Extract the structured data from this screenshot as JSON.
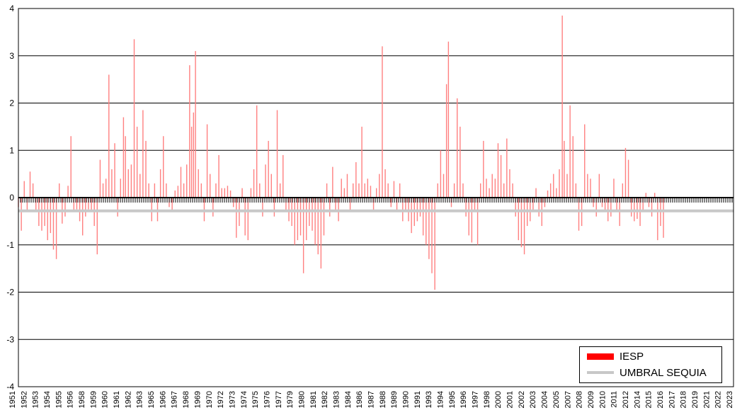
{
  "chart_data": {
    "type": "bar",
    "title": "",
    "xlabel": "",
    "ylabel": "",
    "ylim": [
      -4,
      4
    ],
    "yticks": [
      "4",
      "3",
      "2",
      "1",
      "0",
      "-1",
      "-2",
      "-3",
      "-4"
    ],
    "xlim": [
      1951,
      2024.5
    ],
    "xticks": [
      "1951",
      "1952",
      "1953",
      "1954",
      "1955",
      "1956",
      "1958",
      "1959",
      "1960",
      "1961",
      "1962",
      "1963",
      "1965",
      "1966",
      "1967",
      "1968",
      "1969",
      "1970",
      "1972",
      "1973",
      "1974",
      "1975",
      "1976",
      "1977",
      "1979",
      "1980",
      "1981",
      "1982",
      "1983",
      "1984",
      "1986",
      "1987",
      "1988",
      "1989",
      "1990",
      "1991",
      "1993",
      "1994",
      "1995",
      "1996",
      "1997",
      "1998",
      "2000",
      "2001",
      "2002",
      "2003",
      "2004",
      "2005",
      "2007",
      "2008",
      "2009",
      "2010",
      "2011",
      "2012",
      "2014",
      "2015",
      "2016",
      "2017",
      "2018",
      "2019",
      "2021",
      "2022",
      "2023"
    ],
    "grid": true,
    "legend_position": "bottom-right",
    "colors": {
      "bars": "#ff8080",
      "threshold": "#c8c8c8",
      "legend_iesp": "#ff0000"
    },
    "series": [
      {
        "name": "IESP",
        "kind": "bar",
        "points": [
          [
            1951.0,
            -0.2
          ],
          [
            1951.3,
            -0.7
          ],
          [
            1951.6,
            0.35
          ],
          [
            1951.9,
            -0.3
          ],
          [
            1952.2,
            0.55
          ],
          [
            1952.5,
            0.3
          ],
          [
            1952.8,
            -0.3
          ],
          [
            1953.1,
            -0.6
          ],
          [
            1953.4,
            -0.7
          ],
          [
            1953.7,
            -0.6
          ],
          [
            1954.0,
            -0.9
          ],
          [
            1954.3,
            -0.75
          ],
          [
            1954.6,
            -1.1
          ],
          [
            1954.9,
            -1.3
          ],
          [
            1955.2,
            0.3
          ],
          [
            1955.5,
            -0.55
          ],
          [
            1955.8,
            -0.4
          ],
          [
            1956.1,
            0.25
          ],
          [
            1956.4,
            1.3
          ],
          [
            1956.7,
            -0.3
          ],
          [
            1957.0,
            -0.25
          ],
          [
            1957.3,
            -0.5
          ],
          [
            1957.6,
            -0.8
          ],
          [
            1957.9,
            -0.4
          ],
          [
            1958.2,
            -0.25
          ],
          [
            1958.5,
            -0.3
          ],
          [
            1958.8,
            -0.6
          ],
          [
            1959.1,
            -1.2
          ],
          [
            1959.4,
            0.8
          ],
          [
            1959.7,
            0.3
          ],
          [
            1960.0,
            0.4
          ],
          [
            1960.3,
            2.6
          ],
          [
            1960.6,
            0.6
          ],
          [
            1960.9,
            1.15
          ],
          [
            1961.2,
            -0.4
          ],
          [
            1961.5,
            0.4
          ],
          [
            1961.8,
            1.7
          ],
          [
            1962.0,
            1.3
          ],
          [
            1962.3,
            0.6
          ],
          [
            1962.6,
            0.7
          ],
          [
            1962.9,
            3.35
          ],
          [
            1963.2,
            1.5
          ],
          [
            1963.5,
            0.5
          ],
          [
            1963.8,
            1.85
          ],
          [
            1964.1,
            1.2
          ],
          [
            1964.4,
            0.3
          ],
          [
            1964.7,
            -0.5
          ],
          [
            1965.0,
            0.3
          ],
          [
            1965.3,
            -0.5
          ],
          [
            1965.6,
            0.6
          ],
          [
            1965.9,
            1.3
          ],
          [
            1966.2,
            0.3
          ],
          [
            1966.5,
            -0.2
          ],
          [
            1966.8,
            -0.3
          ],
          [
            1967.1,
            0.15
          ],
          [
            1967.4,
            0.25
          ],
          [
            1967.7,
            0.65
          ],
          [
            1968.0,
            0.3
          ],
          [
            1968.3,
            0.7
          ],
          [
            1968.6,
            2.8
          ],
          [
            1968.8,
            1.5
          ],
          [
            1969.0,
            1.8
          ],
          [
            1969.2,
            3.1
          ],
          [
            1969.5,
            0.6
          ],
          [
            1969.8,
            0.3
          ],
          [
            1970.1,
            -0.5
          ],
          [
            1970.4,
            1.55
          ],
          [
            1970.7,
            0.5
          ],
          [
            1971.0,
            -0.4
          ],
          [
            1971.3,
            0.3
          ],
          [
            1971.6,
            0.9
          ],
          [
            1971.9,
            0.2
          ],
          [
            1972.2,
            0.2
          ],
          [
            1972.5,
            0.25
          ],
          [
            1972.8,
            0.15
          ],
          [
            1973.1,
            -0.2
          ],
          [
            1973.4,
            -0.85
          ],
          [
            1973.7,
            -0.6
          ],
          [
            1974.0,
            0.2
          ],
          [
            1974.3,
            -0.8
          ],
          [
            1974.6,
            -0.9
          ],
          [
            1974.9,
            0.2
          ],
          [
            1975.2,
            0.6
          ],
          [
            1975.5,
            1.95
          ],
          [
            1975.8,
            0.3
          ],
          [
            1976.1,
            -0.4
          ],
          [
            1976.4,
            0.7
          ],
          [
            1976.7,
            1.2
          ],
          [
            1977.0,
            0.5
          ],
          [
            1977.3,
            -0.4
          ],
          [
            1977.6,
            1.85
          ],
          [
            1977.9,
            0.3
          ],
          [
            1978.2,
            0.9
          ],
          [
            1978.5,
            -0.3
          ],
          [
            1978.8,
            -0.5
          ],
          [
            1979.1,
            -0.6
          ],
          [
            1979.4,
            -1.0
          ],
          [
            1979.7,
            -0.9
          ],
          [
            1980.0,
            -0.8
          ],
          [
            1980.3,
            -1.6
          ],
          [
            1980.6,
            -0.9
          ],
          [
            1980.9,
            -0.6
          ],
          [
            1981.2,
            -0.7
          ],
          [
            1981.5,
            -1.0
          ],
          [
            1981.8,
            -1.2
          ],
          [
            1982.1,
            -1.5
          ],
          [
            1982.4,
            -0.8
          ],
          [
            1982.7,
            0.3
          ],
          [
            1983.0,
            -0.4
          ],
          [
            1983.3,
            0.65
          ],
          [
            1983.6,
            -0.3
          ],
          [
            1983.9,
            -0.5
          ],
          [
            1984.2,
            0.4
          ],
          [
            1984.5,
            0.2
          ],
          [
            1984.8,
            0.5
          ],
          [
            1985.1,
            -0.3
          ],
          [
            1985.4,
            0.3
          ],
          [
            1985.7,
            0.75
          ],
          [
            1986.0,
            0.3
          ],
          [
            1986.3,
            1.5
          ],
          [
            1986.6,
            0.3
          ],
          [
            1986.9,
            0.4
          ],
          [
            1987.2,
            0.25
          ],
          [
            1987.5,
            -0.3
          ],
          [
            1987.8,
            0.2
          ],
          [
            1988.1,
            0.5
          ],
          [
            1988.4,
            3.2
          ],
          [
            1988.7,
            0.6
          ],
          [
            1989.0,
            0.3
          ],
          [
            1989.3,
            -0.2
          ],
          [
            1989.6,
            0.35
          ],
          [
            1989.9,
            -0.3
          ],
          [
            1990.2,
            0.3
          ],
          [
            1990.5,
            -0.5
          ],
          [
            1990.8,
            -0.3
          ],
          [
            1991.1,
            -0.5
          ],
          [
            1991.4,
            -0.75
          ],
          [
            1991.7,
            -0.6
          ],
          [
            1992.0,
            -0.5
          ],
          [
            1992.3,
            -0.4
          ],
          [
            1992.6,
            -0.8
          ],
          [
            1992.9,
            -1.0
          ],
          [
            1993.2,
            -1.3
          ],
          [
            1993.5,
            -1.6
          ],
          [
            1993.8,
            -1.95
          ],
          [
            1994.1,
            0.3
          ],
          [
            1994.4,
            1.0
          ],
          [
            1994.7,
            0.5
          ],
          [
            1995.0,
            2.4
          ],
          [
            1995.2,
            3.3
          ],
          [
            1995.5,
            -0.2
          ],
          [
            1995.8,
            0.3
          ],
          [
            1996.1,
            2.1
          ],
          [
            1996.4,
            1.5
          ],
          [
            1996.7,
            0.3
          ],
          [
            1997.0,
            -0.4
          ],
          [
            1997.3,
            -0.8
          ],
          [
            1997.6,
            -0.95
          ],
          [
            1997.9,
            -0.3
          ],
          [
            1998.2,
            -1.0
          ],
          [
            1998.5,
            0.3
          ],
          [
            1998.8,
            1.2
          ],
          [
            1999.1,
            0.4
          ],
          [
            1999.4,
            0.2
          ],
          [
            1999.7,
            0.5
          ],
          [
            2000.0,
            0.4
          ],
          [
            2000.3,
            1.15
          ],
          [
            2000.6,
            0.9
          ],
          [
            2000.9,
            0.3
          ],
          [
            2001.2,
            1.25
          ],
          [
            2001.5,
            0.6
          ],
          [
            2001.8,
            0.3
          ],
          [
            2002.1,
            -0.4
          ],
          [
            2002.4,
            -0.9
          ],
          [
            2002.7,
            -1.05
          ],
          [
            2003.0,
            -1.2
          ],
          [
            2003.3,
            -0.6
          ],
          [
            2003.6,
            -0.5
          ],
          [
            2003.9,
            -0.3
          ],
          [
            2004.2,
            0.2
          ],
          [
            2004.5,
            -0.4
          ],
          [
            2004.8,
            -0.6
          ],
          [
            2005.1,
            -0.2
          ],
          [
            2005.4,
            0.15
          ],
          [
            2005.7,
            0.3
          ],
          [
            2006.0,
            0.5
          ],
          [
            2006.3,
            0.2
          ],
          [
            2006.6,
            0.6
          ],
          [
            2006.9,
            3.85
          ],
          [
            2007.1,
            1.2
          ],
          [
            2007.4,
            0.5
          ],
          [
            2007.7,
            1.95
          ],
          [
            2008.0,
            1.3
          ],
          [
            2008.3,
            0.3
          ],
          [
            2008.6,
            -0.7
          ],
          [
            2008.9,
            -0.6
          ],
          [
            2009.2,
            1.55
          ],
          [
            2009.5,
            0.5
          ],
          [
            2009.8,
            0.4
          ],
          [
            2010.1,
            -0.2
          ],
          [
            2010.4,
            -0.4
          ],
          [
            2010.7,
            0.5
          ],
          [
            2011.0,
            -0.2
          ],
          [
            2011.3,
            -0.3
          ],
          [
            2011.6,
            -0.5
          ],
          [
            2011.9,
            -0.4
          ],
          [
            2012.2,
            0.4
          ],
          [
            2012.5,
            -0.3
          ],
          [
            2012.8,
            -0.6
          ],
          [
            2013.1,
            0.3
          ],
          [
            2013.4,
            1.05
          ],
          [
            2013.7,
            0.8
          ],
          [
            2014.0,
            -0.4
          ],
          [
            2014.3,
            -0.5
          ],
          [
            2014.6,
            -0.45
          ],
          [
            2014.9,
            -0.6
          ],
          [
            2015.2,
            -0.3
          ],
          [
            2015.5,
            0.1
          ],
          [
            2015.8,
            -0.2
          ],
          [
            2016.1,
            -0.4
          ],
          [
            2016.4,
            0.1
          ],
          [
            2016.7,
            -0.9
          ],
          [
            2017.0,
            -0.6
          ],
          [
            2017.3,
            -0.85
          ]
        ]
      },
      {
        "name": "UMBRAL SEQUIA",
        "kind": "line",
        "value": -0.28
      }
    ]
  },
  "legend": {
    "items": [
      "IESP",
      "UMBRAL SEQUIA"
    ]
  }
}
